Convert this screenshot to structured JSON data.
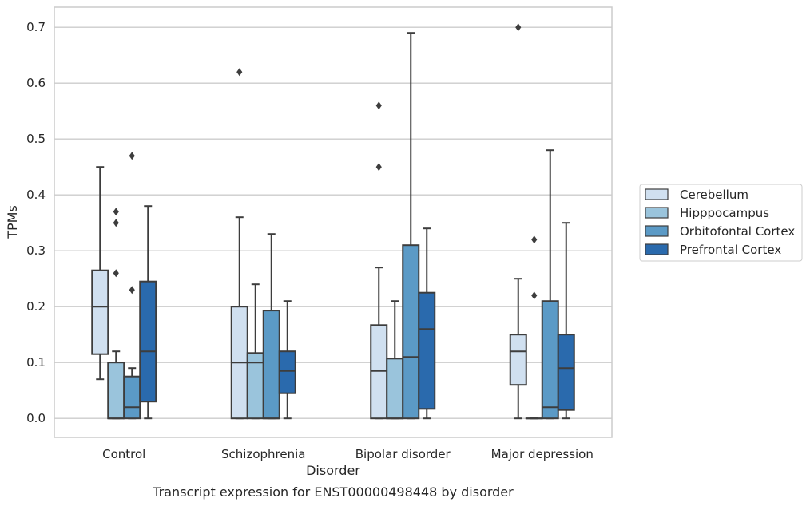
{
  "chart_data": {
    "type": "box",
    "caption": "Transcript expression for ENST00000498448 by disorder",
    "xlabel": "Disorder",
    "ylabel": "TPMs",
    "ylim": [
      -0.034,
      0.736
    ],
    "yticks": [
      0.0,
      0.1,
      0.2,
      0.3,
      0.4,
      0.5,
      0.6,
      0.7
    ],
    "ytick_labels": [
      "0.0",
      "0.1",
      "0.2",
      "0.3",
      "0.4",
      "0.5",
      "0.6",
      "0.7"
    ],
    "grid": "horizontal",
    "legend_placement": "right",
    "categories": [
      "Control",
      "Schizophrenia",
      "Bipolar disorder",
      "Major depression"
    ],
    "series": [
      {
        "name": "Cerebellum",
        "color": "#d0e0f0",
        "boxes": [
          {
            "whisker_low": 0.07,
            "q1": 0.115,
            "median": 0.2,
            "q3": 0.265,
            "whisker_high": 0.45,
            "outliers": []
          },
          {
            "whisker_low": 0.0,
            "q1": 0.0,
            "median": 0.1,
            "q3": 0.2,
            "whisker_high": 0.36,
            "outliers": [
              0.62
            ]
          },
          {
            "whisker_low": 0.0,
            "q1": 0.0,
            "median": 0.085,
            "q3": 0.167,
            "whisker_high": 0.27,
            "outliers": [
              0.45,
              0.56
            ]
          },
          {
            "whisker_low": 0.0,
            "q1": 0.06,
            "median": 0.12,
            "q3": 0.15,
            "whisker_high": 0.25,
            "outliers": [
              0.7
            ]
          }
        ]
      },
      {
        "name": "Hipppocampus",
        "color": "#9ac4dc",
        "boxes": [
          {
            "whisker_low": 0.0,
            "q1": 0.0,
            "median": 0.0,
            "q3": 0.1,
            "whisker_high": 0.12,
            "outliers": [
              0.26,
              0.35,
              0.37
            ]
          },
          {
            "whisker_low": 0.0,
            "q1": 0.0,
            "median": 0.1,
            "q3": 0.117,
            "whisker_high": 0.24,
            "outliers": []
          },
          {
            "whisker_low": 0.0,
            "q1": 0.0,
            "median": 0.0,
            "q3": 0.107,
            "whisker_high": 0.21,
            "outliers": []
          },
          {
            "whisker_low": 0.0,
            "q1": 0.0,
            "median": 0.0,
            "q3": 0.0,
            "whisker_high": 0.0,
            "outliers": [
              0.22,
              0.32
            ]
          }
        ]
      },
      {
        "name": "Orbitofontal Cortex",
        "color": "#5b9ac6",
        "boxes": [
          {
            "whisker_low": 0.0,
            "q1": 0.0,
            "median": 0.02,
            "q3": 0.075,
            "whisker_high": 0.09,
            "outliers": [
              0.23,
              0.47
            ]
          },
          {
            "whisker_low": 0.0,
            "q1": 0.0,
            "median": 0.0,
            "q3": 0.193,
            "whisker_high": 0.33,
            "outliers": []
          },
          {
            "whisker_low": 0.0,
            "q1": 0.0,
            "median": 0.11,
            "q3": 0.31,
            "whisker_high": 0.69,
            "outliers": []
          },
          {
            "whisker_low": 0.0,
            "q1": 0.0,
            "median": 0.02,
            "q3": 0.21,
            "whisker_high": 0.48,
            "outliers": []
          }
        ]
      },
      {
        "name": "Prefrontal Cortex",
        "color": "#2a6aad",
        "boxes": [
          {
            "whisker_low": 0.0,
            "q1": 0.03,
            "median": 0.12,
            "q3": 0.245,
            "whisker_high": 0.38,
            "outliers": []
          },
          {
            "whisker_low": 0.0,
            "q1": 0.045,
            "median": 0.085,
            "q3": 0.12,
            "whisker_high": 0.21,
            "outliers": []
          },
          {
            "whisker_low": 0.0,
            "q1": 0.017,
            "median": 0.16,
            "q3": 0.225,
            "whisker_high": 0.34,
            "outliers": []
          },
          {
            "whisker_low": 0.0,
            "q1": 0.015,
            "median": 0.09,
            "q3": 0.15,
            "whisker_high": 0.35,
            "outliers": []
          }
        ]
      }
    ]
  }
}
